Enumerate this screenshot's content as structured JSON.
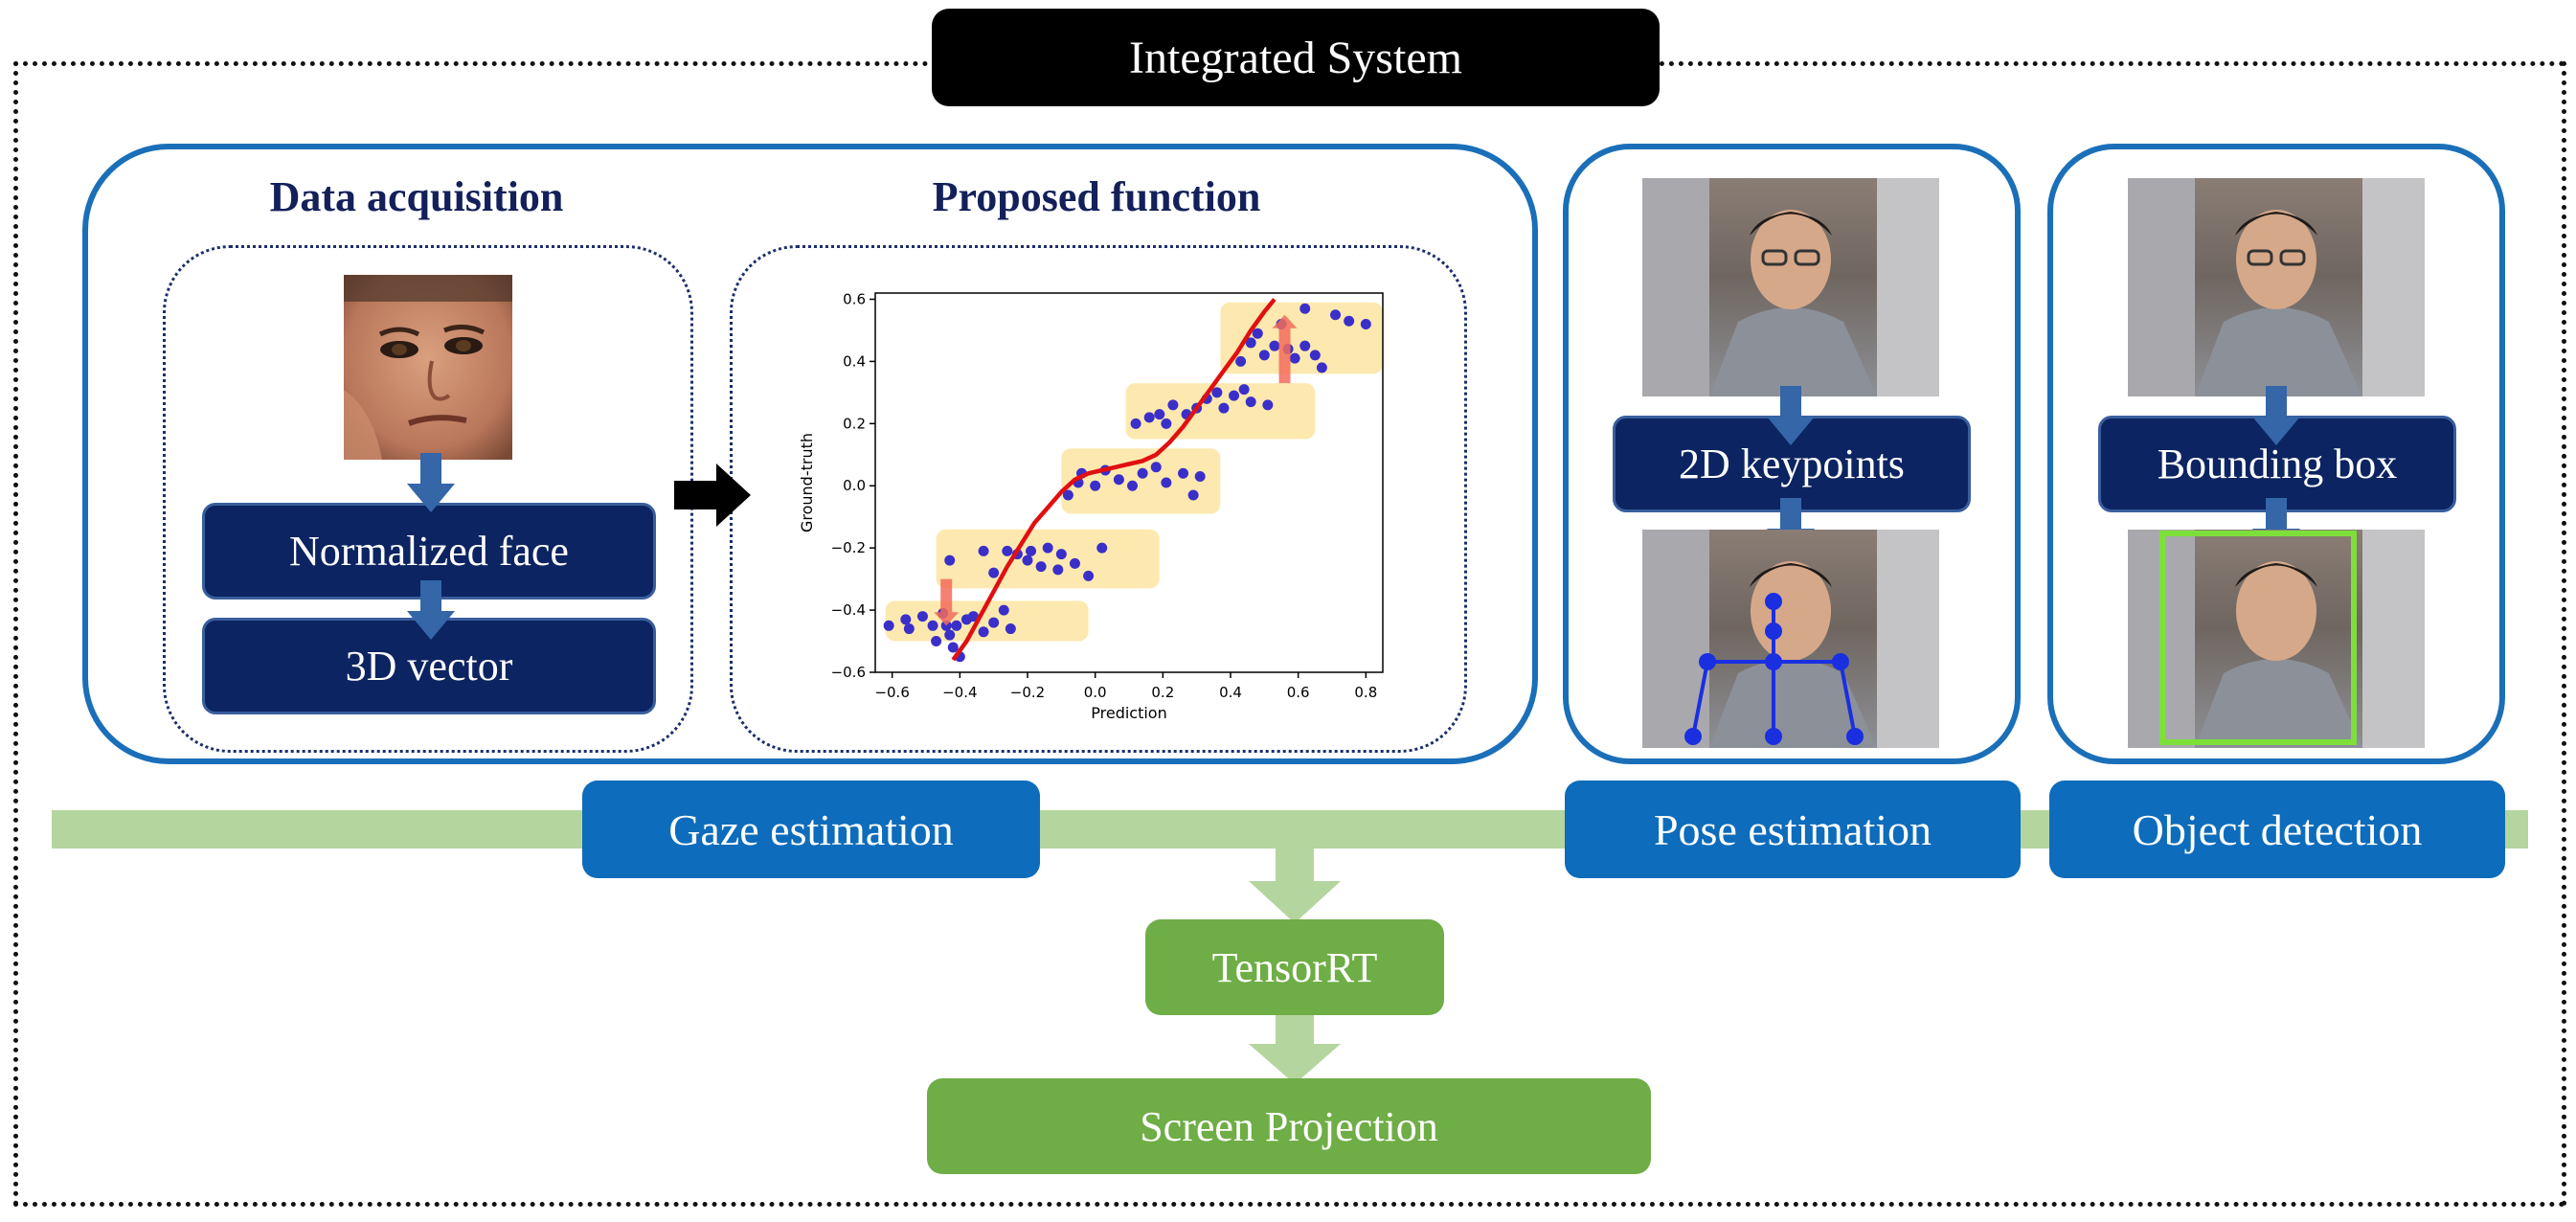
{
  "title": "Integrated System",
  "gaze_panel": {
    "data_acquisition_title": "Data acquisition",
    "proposed_function_title": "Proposed function",
    "normalized_face_label": "Normalized face",
    "vector_label": "3D vector"
  },
  "pose_panel": {
    "keypoints_label": "2D keypoints"
  },
  "object_panel": {
    "bbox_label": "Bounding box"
  },
  "modules": {
    "gaze": "Gaze estimation",
    "pose": "Pose estimation",
    "object": "Object detection"
  },
  "pipeline": {
    "tensorrt": "TensorRT",
    "screen_projection": "Screen Projection"
  },
  "colors": {
    "panel_border": "#1a6fb8",
    "navy": "#0c2461",
    "module_blue": "#0d6cbb",
    "green": "#6fad46",
    "light_green": "#b5d59f",
    "points": "#3b2fc9",
    "curve": "#e01010",
    "highlight": "#fde9b0"
  },
  "chart_data": {
    "type": "scatter",
    "xlabel": "Prediction",
    "ylabel": "Ground-truth",
    "xlim": [
      -0.65,
      0.85
    ],
    "ylim": [
      -0.6,
      0.62
    ],
    "xticks": [
      -0.6,
      -0.4,
      -0.2,
      0.0,
      0.2,
      0.4,
      0.6,
      0.8
    ],
    "yticks": [
      -0.6,
      -0.4,
      -0.2,
      0.0,
      0.2,
      0.4,
      0.6
    ],
    "xtick_labels": [
      "−0.6",
      "−0.4",
      "−0.2",
      "0.0",
      "0.2",
      "0.4",
      "0.6",
      "0.8"
    ],
    "ytick_labels": [
      "−0.6",
      "−0.4",
      "−0.2",
      "0.0",
      "0.2",
      "0.4",
      "0.6"
    ],
    "points": [
      [
        -0.61,
        -0.45
      ],
      [
        -0.56,
        -0.43
      ],
      [
        -0.55,
        -0.46
      ],
      [
        -0.51,
        -0.42
      ],
      [
        -0.48,
        -0.45
      ],
      [
        -0.47,
        -0.5
      ],
      [
        -0.45,
        -0.41
      ],
      [
        -0.44,
        -0.45
      ],
      [
        -0.43,
        -0.48
      ],
      [
        -0.42,
        -0.52
      ],
      [
        -0.41,
        -0.45
      ],
      [
        -0.4,
        -0.55
      ],
      [
        -0.38,
        -0.43
      ],
      [
        -0.36,
        -0.42
      ],
      [
        -0.33,
        -0.47
      ],
      [
        -0.3,
        -0.44
      ],
      [
        -0.27,
        -0.4
      ],
      [
        -0.25,
        -0.46
      ],
      [
        -0.43,
        -0.24
      ],
      [
        -0.33,
        -0.21
      ],
      [
        -0.3,
        -0.28
      ],
      [
        -0.26,
        -0.21
      ],
      [
        -0.23,
        -0.22
      ],
      [
        -0.2,
        -0.24
      ],
      [
        -0.19,
        -0.21
      ],
      [
        -0.16,
        -0.26
      ],
      [
        -0.14,
        -0.2
      ],
      [
        -0.11,
        -0.27
      ],
      [
        -0.1,
        -0.22
      ],
      [
        -0.06,
        -0.25
      ],
      [
        -0.02,
        -0.29
      ],
      [
        0.02,
        -0.2
      ],
      [
        -0.08,
        -0.03
      ],
      [
        -0.05,
        0.01
      ],
      [
        -0.04,
        0.04
      ],
      [
        0.0,
        0.0
      ],
      [
        0.03,
        0.05
      ],
      [
        0.07,
        0.02
      ],
      [
        0.11,
        0.0
      ],
      [
        0.14,
        0.04
      ],
      [
        0.18,
        0.06
      ],
      [
        0.21,
        0.01
      ],
      [
        0.26,
        0.04
      ],
      [
        0.29,
        -0.03
      ],
      [
        0.31,
        0.03
      ],
      [
        0.12,
        0.2
      ],
      [
        0.16,
        0.22
      ],
      [
        0.19,
        0.23
      ],
      [
        0.21,
        0.2
      ],
      [
        0.23,
        0.26
      ],
      [
        0.27,
        0.23
      ],
      [
        0.3,
        0.25
      ],
      [
        0.33,
        0.28
      ],
      [
        0.36,
        0.3
      ],
      [
        0.38,
        0.25
      ],
      [
        0.41,
        0.29
      ],
      [
        0.44,
        0.31
      ],
      [
        0.46,
        0.27
      ],
      [
        0.51,
        0.26
      ],
      [
        0.43,
        0.4
      ],
      [
        0.46,
        0.46
      ],
      [
        0.48,
        0.49
      ],
      [
        0.5,
        0.42
      ],
      [
        0.53,
        0.45
      ],
      [
        0.55,
        0.52
      ],
      [
        0.57,
        0.44
      ],
      [
        0.59,
        0.41
      ],
      [
        0.62,
        0.45
      ],
      [
        0.65,
        0.42
      ],
      [
        0.67,
        0.38
      ],
      [
        0.71,
        0.55
      ],
      [
        0.75,
        0.53
      ],
      [
        0.8,
        0.52
      ],
      [
        0.62,
        0.57
      ]
    ],
    "curve": [
      [
        -0.42,
        -0.56
      ],
      [
        -0.38,
        -0.5
      ],
      [
        -0.34,
        -0.42
      ],
      [
        -0.3,
        -0.34
      ],
      [
        -0.26,
        -0.26
      ],
      [
        -0.22,
        -0.19
      ],
      [
        -0.18,
        -0.12
      ],
      [
        -0.14,
        -0.07
      ],
      [
        -0.1,
        -0.02
      ],
      [
        -0.06,
        0.02
      ],
      [
        -0.02,
        0.04
      ],
      [
        0.02,
        0.05
      ],
      [
        0.06,
        0.06
      ],
      [
        0.1,
        0.07
      ],
      [
        0.14,
        0.08
      ],
      [
        0.18,
        0.1
      ],
      [
        0.22,
        0.14
      ],
      [
        0.26,
        0.19
      ],
      [
        0.3,
        0.25
      ],
      [
        0.34,
        0.31
      ],
      [
        0.38,
        0.37
      ],
      [
        0.42,
        0.43
      ],
      [
        0.46,
        0.5
      ],
      [
        0.5,
        0.56
      ],
      [
        0.53,
        0.6
      ]
    ],
    "highlight_bands": [
      [
        -0.62,
        -0.02,
        -0.5,
        -0.37
      ],
      [
        -0.47,
        0.19,
        -0.33,
        -0.14
      ],
      [
        -0.1,
        0.37,
        -0.09,
        0.12
      ],
      [
        0.09,
        0.65,
        0.15,
        0.33
      ],
      [
        0.37,
        0.85,
        0.36,
        0.59
      ]
    ],
    "arrows": [
      {
        "x": -0.44,
        "y_from": -0.3,
        "y_to": -0.45
      },
      {
        "x": 0.56,
        "y_from": 0.33,
        "y_to": 0.55
      }
    ]
  }
}
